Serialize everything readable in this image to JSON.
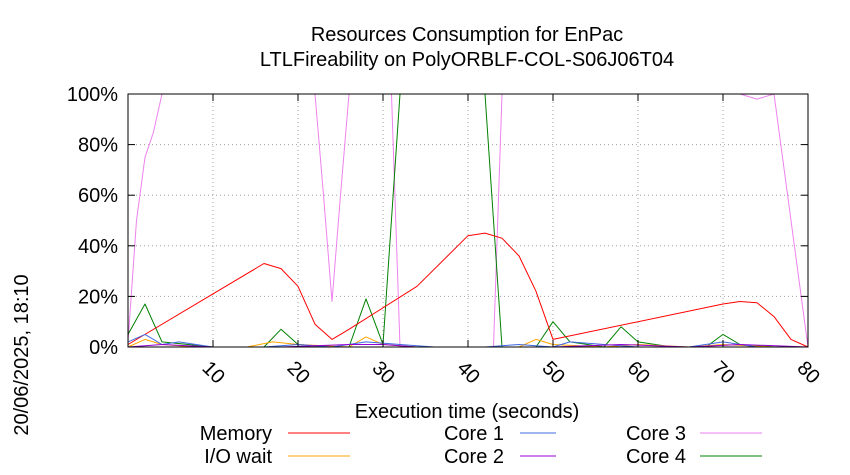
{
  "chart_data": {
    "type": "line",
    "title": "Resources Consumption for EnPac",
    "subtitle": "LTLFireability on PolyORBLF-COL-S06J06T04",
    "xlabel": "Execution time (seconds)",
    "ylabel": "",
    "side_label": "20/06/2025, 18:10",
    "xlim": [
      0,
      80
    ],
    "ylim": [
      0,
      100
    ],
    "x_ticks": [
      10,
      20,
      30,
      40,
      50,
      60,
      70,
      80
    ],
    "y_ticks": [
      0,
      20,
      40,
      60,
      80,
      100
    ],
    "y_tick_labels": [
      "0%",
      "20%",
      "40%",
      "60%",
      "80%",
      "100%"
    ],
    "grid": true,
    "legend_position": "bottom",
    "series": [
      {
        "name": "Memory",
        "color": "#ff0000",
        "x": [
          0,
          16,
          18,
          20,
          22,
          24,
          26,
          34,
          40,
          42,
          44,
          46,
          48,
          50,
          70,
          72,
          74,
          76,
          78,
          80
        ],
        "values": [
          1,
          33,
          31,
          24,
          9,
          3,
          7,
          24,
          44,
          45,
          43,
          36,
          22,
          3,
          17,
          18,
          17.5,
          12,
          3,
          0
        ]
      },
      {
        "name": "I/O wait",
        "color": "#ffa500",
        "x": [
          0,
          2,
          4,
          8,
          14,
          17,
          20,
          26,
          28,
          30,
          34,
          40,
          46,
          48,
          50,
          56,
          60,
          66,
          70,
          76,
          80
        ],
        "values": [
          0,
          3,
          1,
          0,
          0,
          2,
          1,
          0,
          4,
          1,
          0,
          0,
          0,
          3,
          1,
          0,
          1,
          0,
          1,
          0,
          0
        ]
      },
      {
        "name": "Core 1",
        "color": "#4169e1",
        "x": [
          0,
          2,
          4,
          6,
          8,
          10,
          16,
          20,
          24,
          28,
          32,
          36,
          42,
          46,
          50,
          52,
          56,
          60,
          66,
          70,
          74,
          80
        ],
        "values": [
          2,
          5,
          1,
          2,
          1,
          0,
          0,
          1,
          0,
          2,
          1,
          0,
          0,
          1,
          0,
          2,
          1,
          0,
          0,
          2,
          0,
          0
        ]
      },
      {
        "name": "Core 2",
        "color": "#9400d3",
        "x": [
          0,
          4,
          10,
          18,
          26,
          30,
          34,
          42,
          50,
          58,
          66,
          72,
          80
        ],
        "values": [
          0,
          1,
          0,
          0,
          1,
          1,
          0,
          0,
          0,
          1,
          0,
          1,
          0
        ]
      },
      {
        "name": "Core 3",
        "color": "#ee82ee",
        "x": [
          0,
          1,
          2,
          3,
          4,
          10,
          20,
          22,
          23,
          24,
          25,
          26,
          30,
          31,
          32,
          34,
          42,
          43,
          44,
          50,
          60,
          72,
          74,
          76,
          80
        ],
        "values": [
          2,
          50,
          75,
          85,
          100,
          100,
          100,
          100,
          60,
          18,
          60,
          100,
          100,
          100,
          0,
          0,
          0,
          0,
          100,
          100,
          100,
          100,
          98,
          100,
          0
        ]
      },
      {
        "name": "Core 4",
        "color": "#008000",
        "x": [
          0,
          2,
          4,
          10,
          16,
          18,
          20,
          24,
          26,
          28,
          30,
          32,
          42,
          44,
          48,
          50,
          52,
          56,
          58,
          60,
          64,
          68,
          70,
          72,
          76,
          80
        ],
        "values": [
          5,
          17,
          2,
          0,
          0,
          7,
          1,
          0,
          0,
          19,
          1,
          100,
          100,
          0,
          0,
          10,
          2,
          0,
          8,
          2,
          0,
          0,
          5,
          1,
          0,
          0
        ]
      }
    ]
  }
}
